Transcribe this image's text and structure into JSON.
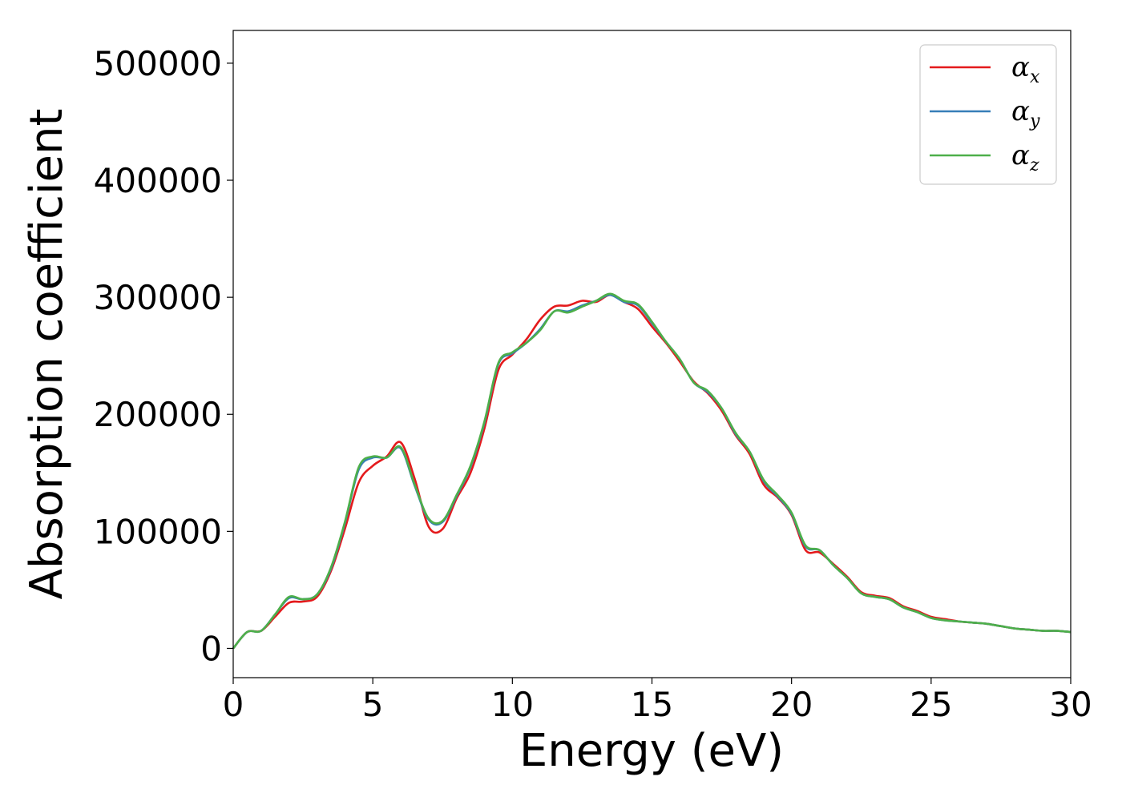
{
  "chart_data": {
    "type": "line",
    "title": "",
    "xlabel": "Energy (eV)",
    "ylabel": "Absorption coefficient",
    "xlim": [
      0,
      30
    ],
    "ylim": [
      -25000,
      528000
    ],
    "xticks": [
      0,
      5,
      10,
      15,
      20,
      25,
      30
    ],
    "xtick_labels": [
      "0",
      "5",
      "10",
      "15",
      "20",
      "25",
      "30"
    ],
    "yticks": [
      0,
      100000,
      200000,
      300000,
      400000,
      500000
    ],
    "ytick_labels": [
      "0",
      "100000",
      "200000",
      "300000",
      "400000",
      "500000"
    ],
    "grid": false,
    "legend_position": "top-right",
    "x": [
      0,
      0.5,
      1,
      1.5,
      2,
      2.5,
      3,
      3.5,
      4,
      4.5,
      5,
      5.5,
      6,
      6.5,
      7,
      7.5,
      8,
      8.5,
      9,
      9.5,
      10,
      10.5,
      11,
      11.5,
      12,
      12.5,
      13,
      13.5,
      14,
      14.5,
      15,
      15.5,
      16,
      16.5,
      17,
      17.5,
      18,
      18.5,
      19,
      19.5,
      20,
      20.5,
      21,
      21.5,
      22,
      22.5,
      23,
      23.5,
      24,
      24.5,
      25,
      25.5,
      26,
      26.5,
      27,
      27.5,
      28,
      28.5,
      29,
      29.5,
      30
    ],
    "series": [
      {
        "name": "α",
        "subscript": "x",
        "color": "#e41a1c",
        "values": [
          0,
          14000,
          15000,
          27000,
          39000,
          40000,
          44000,
          66000,
          102000,
          142000,
          156000,
          164000,
          176000,
          145000,
          104000,
          102000,
          128000,
          150000,
          188000,
          238000,
          251000,
          264000,
          281000,
          292000,
          293000,
          297000,
          296000,
          302000,
          296000,
          290000,
          275000,
          261000,
          245000,
          228000,
          218000,
          203000,
          182000,
          166000,
          140000,
          129000,
          114000,
          84000,
          82000,
          72000,
          61000,
          48000,
          45000,
          43000,
          36000,
          32000,
          27000,
          25000,
          23000,
          22000,
          21000,
          19000,
          17000,
          16000,
          15000,
          15000,
          14000
        ]
      },
      {
        "name": "α",
        "subscript": "y",
        "color": "#377eb8",
        "values": [
          0,
          14000,
          15000,
          29000,
          43000,
          42000,
          46000,
          68000,
          107000,
          153000,
          163000,
          163000,
          171000,
          139000,
          110000,
          108000,
          130000,
          155000,
          193000,
          243000,
          252000,
          261000,
          273000,
          288000,
          288000,
          293000,
          297000,
          302000,
          296000,
          293000,
          278000,
          262000,
          247000,
          227000,
          219000,
          205000,
          183000,
          168000,
          143000,
          130000,
          115000,
          87000,
          84000,
          71000,
          60000,
          47000,
          44000,
          42000,
          35000,
          31000,
          26000,
          24000,
          23000,
          22000,
          21000,
          19000,
          17000,
          16000,
          15000,
          15000,
          14000
        ]
      },
      {
        "name": "α",
        "subscript": "z",
        "color": "#4daf4a",
        "values": [
          0,
          14000,
          15000,
          29000,
          44000,
          42000,
          46000,
          69000,
          108000,
          155000,
          164000,
          163000,
          172000,
          140000,
          111000,
          109000,
          131000,
          156000,
          194000,
          244000,
          253000,
          261000,
          272000,
          288000,
          287000,
          292000,
          297000,
          303000,
          297000,
          294000,
          279000,
          262000,
          247000,
          227000,
          220000,
          205000,
          184000,
          168000,
          144000,
          131000,
          116000,
          88000,
          84000,
          71000,
          60000,
          47000,
          44000,
          42000,
          35000,
          31000,
          26000,
          24000,
          23000,
          22000,
          21000,
          19000,
          17000,
          16000,
          15000,
          15000,
          14000
        ]
      }
    ]
  }
}
